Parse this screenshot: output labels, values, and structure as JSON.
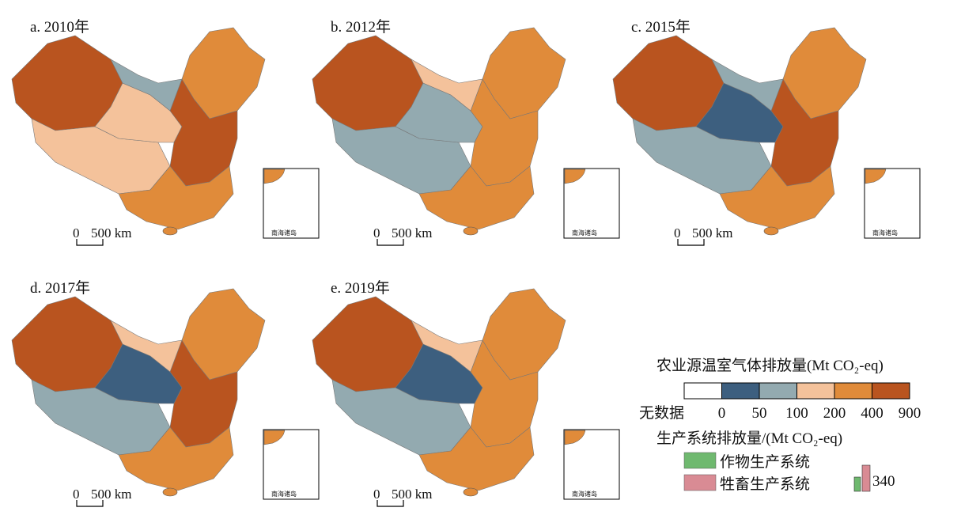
{
  "panels": [
    {
      "title": "a. 2010年",
      "scale": [
        "0",
        "500 km"
      ],
      "inset": "南海诸岛",
      "region_colors": [
        "#b9541f",
        "#f4c29b",
        "#f4c29b",
        "#e08b3a",
        "#b9541f",
        "#e08b3a",
        "#93aab0"
      ]
    },
    {
      "title": "b. 2012年",
      "scale": [
        "0",
        "500 km"
      ],
      "inset": "南海诸岛",
      "region_colors": [
        "#b9541f",
        "#93aab0",
        "#93aab0",
        "#e08b3a",
        "#e08b3a",
        "#e08b3a",
        "#f4c29b"
      ]
    },
    {
      "title": "c. 2015年",
      "scale": [
        "0",
        "500 km"
      ],
      "inset": "南海诸岛",
      "region_colors": [
        "#b9541f",
        "#93aab0",
        "#3d5f7f",
        "#e08b3a",
        "#b9541f",
        "#e08b3a",
        "#93aab0"
      ]
    },
    {
      "title": "d. 2017年",
      "scale": [
        "0",
        "500 km"
      ],
      "inset": "南海诸岛",
      "region_colors": [
        "#b9541f",
        "#93aab0",
        "#3d5f7f",
        "#e08b3a",
        "#b9541f",
        "#e08b3a",
        "#f4c29b"
      ]
    },
    {
      "title": "e. 2019年",
      "scale": [
        "0",
        "500 km"
      ],
      "inset": "南海诸岛",
      "region_colors": [
        "#b9541f",
        "#93aab0",
        "#3d5f7f",
        "#e08b3a",
        "#e08b3a",
        "#e08b3a",
        "#f4c29b"
      ]
    }
  ],
  "legend": {
    "title": "农业源温室气体排放量(Mt CO₂-eq)",
    "no_data": "无数据",
    "classes": [
      "0",
      "50",
      "100",
      "200",
      "400",
      "900"
    ],
    "colors": [
      "#ffffff",
      "#3d5f7f",
      "#93aab0",
      "#f4c29b",
      "#e08b3a",
      "#b9541f"
    ],
    "systems_title": "生产系统排放量/(Mt CO₂-eq)",
    "systems": [
      {
        "name": "作物生产系统",
        "color": "#6fb96f"
      },
      {
        "name": "牲畜生产系统",
        "color": "#d98b94"
      }
    ],
    "size_label": "340"
  }
}
